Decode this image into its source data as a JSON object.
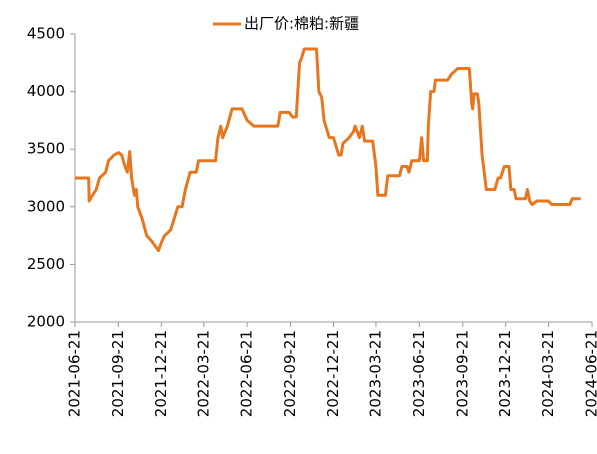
{
  "chart_data": {
    "type": "line",
    "series": [
      {
        "name": "出厂价:棉粕:新疆",
        "color": "#e8761e",
        "x": [
          "2021-06-21",
          "2021-07-20",
          "2021-07-21",
          "2021-07-28",
          "2021-08-05",
          "2021-08-12",
          "2021-08-25",
          "2021-08-31",
          "2021-09-12",
          "2021-09-21",
          "2021-09-28",
          "2021-10-05",
          "2021-10-10",
          "2021-10-15",
          "2021-10-19",
          "2021-10-25",
          "2021-10-29",
          "2021-11-01",
          "2021-11-10",
          "2021-11-20",
          "2021-12-01",
          "2021-12-15",
          "2021-12-22",
          "2021-12-28",
          "2022-01-10",
          "2022-01-25",
          "2022-02-03",
          "2022-02-10",
          "2022-02-20",
          "2022-03-05",
          "2022-03-10",
          "2022-04-15",
          "2022-04-20",
          "2022-04-26",
          "2022-04-30",
          "2022-05-10",
          "2022-05-20",
          "2022-06-10",
          "2022-06-21",
          "2022-07-05",
          "2022-08-25",
          "2022-08-30",
          "2022-09-18",
          "2022-09-25",
          "2022-10-03",
          "2022-10-10",
          "2022-10-15",
          "2022-10-20",
          "2022-11-15",
          "2022-11-20",
          "2022-11-26",
          "2022-12-01",
          "2022-12-12",
          "2022-12-21",
          "2023-01-01",
          "2023-01-06",
          "2023-01-10",
          "2023-01-23",
          "2023-02-01",
          "2023-02-05",
          "2023-02-14",
          "2023-02-20",
          "2023-02-25",
          "2023-03-14",
          "2023-03-21",
          "2023-03-25",
          "2023-04-10",
          "2023-04-15",
          "2023-05-10",
          "2023-05-15",
          "2023-05-26",
          "2023-05-30",
          "2023-06-05",
          "2023-06-21",
          "2023-06-26",
          "2023-06-30",
          "2023-07-08",
          "2023-07-10",
          "2023-07-15",
          "2023-07-22",
          "2023-07-25",
          "2023-08-20",
          "2023-08-28",
          "2023-09-10",
          "2023-10-05",
          "2023-10-10",
          "2023-10-12",
          "2023-10-15",
          "2023-10-22",
          "2023-10-25",
          "2023-11-01",
          "2023-11-10",
          "2023-11-28",
          "2023-12-05",
          "2023-12-10",
          "2023-12-18",
          "2023-12-28",
          "2024-01-01",
          "2024-01-08",
          "2024-01-12",
          "2024-02-01",
          "2024-02-05",
          "2024-02-10",
          "2024-02-15",
          "2024-02-25",
          "2024-03-20",
          "2024-03-28",
          "2024-05-05",
          "2024-05-10",
          "2024-05-28"
        ],
        "values": [
          3250,
          3250,
          3050,
          3100,
          3150,
          3250,
          3300,
          3400,
          3450,
          3470,
          3450,
          3350,
          3300,
          3480,
          3250,
          3100,
          3150,
          3000,
          2900,
          2750,
          2700,
          2620,
          2700,
          2750,
          2800,
          3000,
          3000,
          3150,
          3300,
          3300,
          3400,
          3400,
          3600,
          3700,
          3600,
          3700,
          3850,
          3850,
          3750,
          3700,
          3700,
          3820,
          3820,
          3780,
          3780,
          4250,
          4300,
          4370,
          4370,
          4000,
          3950,
          3750,
          3600,
          3600,
          3450,
          3450,
          3550,
          3600,
          3650,
          3700,
          3600,
          3700,
          3570,
          3570,
          3350,
          3100,
          3100,
          3270,
          3270,
          3350,
          3350,
          3300,
          3400,
          3400,
          3600,
          3400,
          3400,
          3700,
          4000,
          4000,
          4100,
          4100,
          4150,
          4200,
          4200,
          3900,
          3850,
          3980,
          3980,
          3900,
          3450,
          3150,
          3150,
          3250,
          3250,
          3350,
          3350,
          3150,
          3150,
          3070,
          3070,
          3150,
          3050,
          3020,
          3050,
          3050,
          3020,
          3020,
          3070,
          3070
        ]
      }
    ],
    "xlim": [
      "2021-06-21",
      "2024-06-21"
    ],
    "xticks": [
      "2021-06-21",
      "2021-09-21",
      "2021-12-21",
      "2022-03-21",
      "2022-06-21",
      "2022-09-21",
      "2022-12-21",
      "2023-03-21",
      "2023-06-21",
      "2023-09-21",
      "2023-12-21",
      "2024-03-21",
      "2024-06-21"
    ],
    "ylim": [
      2000,
      4500
    ],
    "yticks": [
      2000,
      2500,
      3000,
      3500,
      4000,
      4500
    ],
    "grid": false
  }
}
